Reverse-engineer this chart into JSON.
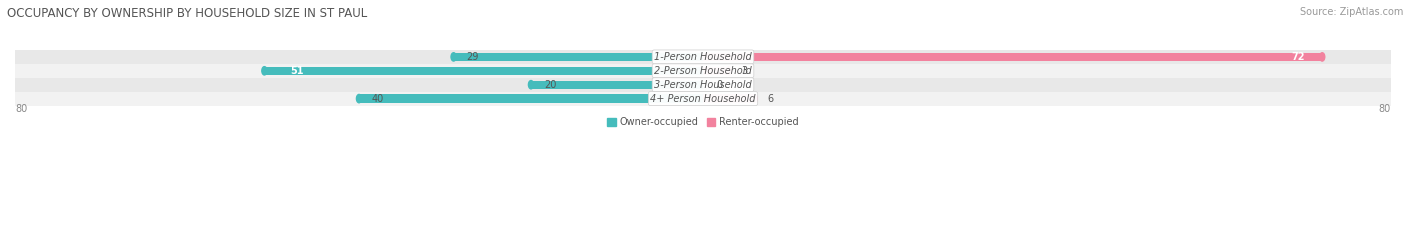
{
  "title": "OCCUPANCY BY OWNERSHIP BY HOUSEHOLD SIZE IN ST PAUL",
  "source": "Source: ZipAtlas.com",
  "categories": [
    "1-Person Household",
    "2-Person Household",
    "3-Person Household",
    "4+ Person Household"
  ],
  "owner_values": [
    29,
    51,
    20,
    40
  ],
  "renter_values": [
    72,
    3,
    0,
    6
  ],
  "owner_color": "#45BCBC",
  "renter_color": "#F2829E",
  "row_bg_colors": [
    "#F2F2F2",
    "#E8E8E8",
    "#F2F2F2",
    "#E8E8E8"
  ],
  "max_value": 80,
  "legend_owner": "Owner-occupied",
  "legend_renter": "Renter-occupied",
  "title_fontsize": 8.5,
  "source_fontsize": 7,
  "label_fontsize": 7,
  "bar_label_fontsize": 7,
  "owner_label_colors": [
    "#666666",
    "#ffffff",
    "#666666",
    "#666666"
  ],
  "renter_label_colors": [
    "#ffffff",
    "#666666",
    "#666666",
    "#666666"
  ]
}
